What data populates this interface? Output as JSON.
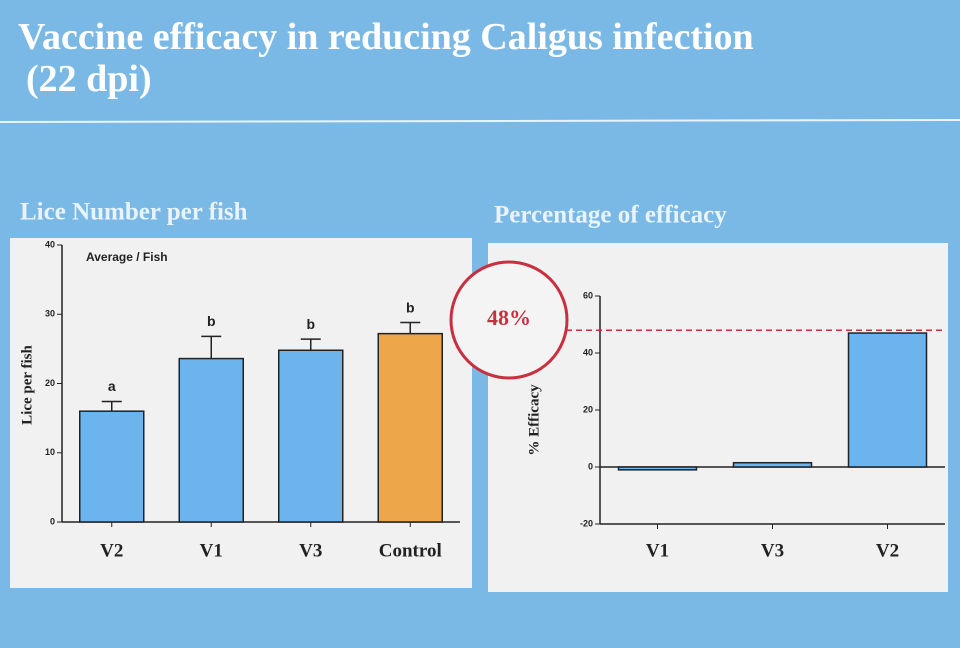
{
  "title": "Vaccine efficacy in reducing Caligus infection (22 dpi)",
  "chart_data": [
    {
      "type": "bar",
      "title": "Lice Number per fish",
      "subtitle": "Average / Fish",
      "y_label": "Lice per fish",
      "categories": [
        "V2",
        "V1",
        "V3",
        "Control"
      ],
      "values": [
        16,
        23.6,
        24.8,
        27.2
      ],
      "errors": [
        1.4,
        3.2,
        1.6,
        1.6
      ],
      "annotations": [
        "a",
        "b",
        "b",
        "b"
      ],
      "colors": [
        "#6cb4ee",
        "#6cb4ee",
        "#6cb4ee",
        "#eea64a"
      ],
      "ylim": [
        0,
        40
      ],
      "yticks": [
        0,
        10,
        20,
        30,
        40
      ]
    },
    {
      "type": "bar",
      "title": "Percentage of efficacy",
      "y_label": "% Efficacy",
      "categories": [
        "V1",
        "V3",
        "V2"
      ],
      "values": [
        -1,
        1.5,
        47
      ],
      "colors": [
        "#6cb4ee",
        "#6cb4ee",
        "#6cb4ee"
      ],
      "reference": {
        "value": 48,
        "label": "48%"
      },
      "ylim": [
        -20,
        60
      ],
      "yticks": [
        -20,
        0,
        20,
        40,
        60
      ]
    }
  ]
}
